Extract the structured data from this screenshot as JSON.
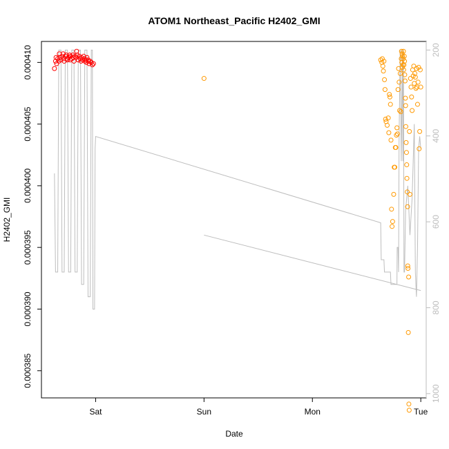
{
  "chart_data": {
    "type": "scatter",
    "title": "ATOM1 Northeast_Pacific H2402_GMI",
    "xlabel": "Date",
    "ylabel": "H2402_GMI",
    "x_ticks": [
      "Sat",
      "Sun",
      "Mon",
      "Tue"
    ],
    "y_ticks": [
      "0.000385",
      "0.000390",
      "0.000395",
      "0.000400",
      "0.000405",
      "0.000410"
    ],
    "y_right_ticks": [
      "200",
      "400",
      "600",
      "800",
      "1000"
    ],
    "xlim": [
      -0.5,
      3.05
    ],
    "ylim": [
      0.0003828,
      0.0004117
    ],
    "y_right_lim": [
      1010,
      180
    ],
    "colors": {
      "series_1": "#ff0000",
      "series_2": "#ff9900",
      "pressure_line": "#bdbdbd",
      "axis": "#000000",
      "right_axis": "#bdbdbd"
    },
    "series": [
      {
        "values": [
          [
            -0.38,
            0.0004095
          ],
          [
            -0.37,
            0.0004101
          ],
          [
            -0.365,
            0.0004104
          ],
          [
            -0.36,
            0.0004099
          ],
          [
            -0.35,
            0.0004103
          ],
          [
            -0.34,
            0.0004101
          ],
          [
            -0.335,
            0.0004107
          ],
          [
            -0.33,
            0.0004104
          ],
          [
            -0.32,
            0.0004102
          ],
          [
            -0.31,
            0.0004105
          ],
          [
            -0.3,
            0.0004107
          ],
          [
            -0.295,
            0.0004103
          ],
          [
            -0.29,
            0.0004101
          ],
          [
            -0.28,
            0.0004105
          ],
          [
            -0.27,
            0.0004106
          ],
          [
            -0.265,
            0.0004103
          ],
          [
            -0.26,
            0.0004102
          ],
          [
            -0.25,
            0.0004104
          ],
          [
            -0.24,
            0.0004106
          ],
          [
            -0.235,
            0.0004102
          ],
          [
            -0.23,
            0.0004105
          ],
          [
            -0.22,
            0.0004103
          ],
          [
            -0.21,
            0.0004106
          ],
          [
            -0.205,
            0.0004104
          ],
          [
            -0.2,
            0.0004101
          ],
          [
            -0.19,
            0.0004105
          ],
          [
            -0.18,
            0.0004104
          ],
          [
            -0.175,
            0.0004109
          ],
          [
            -0.17,
            0.0004106
          ],
          [
            -0.16,
            0.0004102
          ],
          [
            -0.15,
            0.0004105
          ],
          [
            -0.14,
            0.0004103
          ],
          [
            -0.135,
            0.0004101
          ],
          [
            -0.13,
            0.0004104
          ],
          [
            -0.12,
            0.0004102
          ],
          [
            -0.11,
            0.0004105
          ],
          [
            -0.105,
            0.0004103
          ],
          [
            -0.1,
            0.0004101
          ],
          [
            -0.09,
            0.0004102
          ],
          [
            -0.085,
            0.00041
          ],
          [
            -0.08,
            0.0004104
          ],
          [
            -0.07,
            0.0004102
          ],
          [
            -0.065,
            0.0004101
          ],
          [
            -0.06,
            0.0004099
          ],
          [
            -0.05,
            0.0004101
          ],
          [
            -0.04,
            0.00041
          ],
          [
            -0.03,
            0.0004098
          ],
          [
            -0.02,
            0.0004099
          ]
        ]
      },
      {
        "values": [
          [
            1.0,
            0.0004087
          ],
          [
            2.63,
            0.0004102
          ],
          [
            2.64,
            0.00041
          ],
          [
            2.645,
            0.0004103
          ],
          [
            2.65,
            0.0004097
          ],
          [
            2.655,
            0.0004093
          ],
          [
            2.66,
            0.0004101
          ],
          [
            2.665,
            0.0004086
          ],
          [
            2.67,
            0.0004078
          ],
          [
            2.675,
            0.0004054
          ],
          [
            2.68,
            0.0004052
          ],
          [
            2.69,
            0.0004049
          ],
          [
            2.7,
            0.0004055
          ],
          [
            2.705,
            0.0004043
          ],
          [
            2.71,
            0.0004074
          ],
          [
            2.715,
            0.0004072
          ],
          [
            2.72,
            0.0004066
          ],
          [
            2.725,
            0.0004037
          ],
          [
            2.73,
            0.0003981
          ],
          [
            2.735,
            0.0003967
          ],
          [
            2.74,
            0.0003971
          ],
          [
            2.75,
            0.0003993
          ],
          [
            2.755,
            0.0004015
          ],
          [
            2.76,
            0.0004015
          ],
          [
            2.765,
            0.0004031
          ],
          [
            2.77,
            0.0004031
          ],
          [
            2.775,
            0.0004041
          ],
          [
            2.78,
            0.0004047
          ],
          [
            2.785,
            0.0004042
          ],
          [
            2.79,
            0.0004078
          ],
          [
            2.795,
            0.0004095
          ],
          [
            2.8,
            0.0004084
          ],
          [
            2.805,
            0.0004061
          ],
          [
            2.81,
            0.0004091
          ],
          [
            2.815,
            0.000406
          ],
          [
            2.82,
            0.0004103
          ],
          [
            2.822,
            0.0004109
          ],
          [
            2.825,
            0.00041
          ],
          [
            2.828,
            0.0004107
          ],
          [
            2.83,
            0.0004096
          ],
          [
            2.832,
            0.0004105
          ],
          [
            2.835,
            0.0004098
          ],
          [
            2.838,
            0.0004103
          ],
          [
            2.84,
            0.0004109
          ],
          [
            2.842,
            0.0004094
          ],
          [
            2.845,
            0.0004098
          ],
          [
            2.848,
            0.0004105
          ],
          [
            2.85,
            0.0004101
          ],
          [
            2.852,
            0.000409
          ],
          [
            2.855,
            0.0004085
          ],
          [
            2.858,
            0.0004071
          ],
          [
            2.86,
            0.0004065
          ],
          [
            2.862,
            0.0004048
          ],
          [
            2.865,
            0.0004035
          ],
          [
            2.868,
            0.0004027
          ],
          [
            2.87,
            0.0004017
          ],
          [
            2.872,
            0.0004006
          ],
          [
            2.875,
            0.0003995
          ],
          [
            2.878,
            0.0003983
          ],
          [
            2.88,
            0.0003935
          ],
          [
            2.882,
            0.0003933
          ],
          [
            2.885,
            0.0003881
          ],
          [
            2.888,
            0.0003926
          ],
          [
            2.89,
            0.0003823
          ],
          [
            2.893,
            0.0003818
          ],
          [
            2.895,
            0.0004044
          ],
          [
            2.9,
            0.0003993
          ],
          [
            2.905,
            0.0004087
          ],
          [
            2.91,
            0.000408
          ],
          [
            2.915,
            0.0004072
          ],
          [
            2.92,
            0.0004061
          ],
          [
            2.925,
            0.0004094
          ],
          [
            2.93,
            0.0004089
          ],
          [
            2.935,
            0.0004097
          ],
          [
            2.94,
            0.0004083
          ],
          [
            2.945,
            0.0004091
          ],
          [
            2.95,
            0.0004088
          ],
          [
            2.955,
            0.0004079
          ],
          [
            2.96,
            0.0004095
          ],
          [
            2.965,
            0.000408
          ],
          [
            2.97,
            0.0004066
          ],
          [
            2.975,
            0.0004084
          ],
          [
            2.98,
            0.0004096
          ],
          [
            2.985,
            0.000403
          ],
          [
            2.99,
            0.0004044
          ],
          [
            2.995,
            0.0004094
          ],
          [
            3.0,
            0.000408
          ]
        ]
      }
    ],
    "pressure_line": [
      [
        -0.38,
        0.000401
      ],
      [
        -0.37,
        0.000393
      ],
      [
        -0.35,
        0.000393
      ],
      [
        -0.34,
        0.000411
      ],
      [
        -0.32,
        0.000411
      ],
      [
        -0.31,
        0.000393
      ],
      [
        -0.29,
        0.000393
      ],
      [
        -0.28,
        0.000411
      ],
      [
        -0.26,
        0.000411
      ],
      [
        -0.25,
        0.000393
      ],
      [
        -0.23,
        0.000393
      ],
      [
        -0.22,
        0.000411
      ],
      [
        -0.2,
        0.000411
      ],
      [
        -0.19,
        0.000393
      ],
      [
        -0.17,
        0.000393
      ],
      [
        -0.16,
        0.000411
      ],
      [
        -0.14,
        0.000411
      ],
      [
        -0.13,
        0.000392
      ],
      [
        -0.11,
        0.000392
      ],
      [
        -0.1,
        0.000411
      ],
      [
        -0.08,
        0.000411
      ],
      [
        -0.07,
        0.000391
      ],
      [
        -0.05,
        0.000391
      ],
      [
        -0.04,
        0.000411
      ],
      [
        -0.03,
        0.000411
      ],
      [
        -0.025,
        0.00039
      ],
      [
        -0.02,
        0.00039
      ],
      [
        -0.01,
        0.00039
      ],
      [
        -0.005,
        0.000403
      ],
      [
        0.0,
        0.000404
      ],
      [
        2.63,
        0.000397
      ],
      [
        2.635,
        0.000394
      ],
      [
        2.66,
        0.000394
      ],
      [
        2.665,
        0.000393
      ],
      [
        2.72,
        0.000393
      ],
      [
        2.725,
        0.000392
      ],
      [
        2.78,
        0.000392
      ],
      [
        2.782,
        0.000395
      ],
      [
        2.79,
        0.000395
      ],
      [
        2.795,
        0.000393
      ],
      [
        2.8,
        0.000404
      ],
      [
        2.81,
        0.000411
      ],
      [
        2.82,
        0.000402
      ],
      [
        2.83,
        0.000411
      ],
      [
        2.835,
        0.000402
      ],
      [
        2.84,
        0.000411
      ],
      [
        2.845,
        0.000393
      ],
      [
        2.85,
        0.000393
      ],
      [
        2.86,
        0.000398
      ],
      [
        2.88,
        0.0004
      ],
      [
        2.9,
        0.000396
      ],
      [
        2.92,
        0.000399
      ],
      [
        2.94,
        0.000405
      ],
      [
        2.95,
        0.000393
      ],
      [
        2.96,
        0.000391
      ],
      [
        2.97,
        0.000395
      ],
      [
        2.98,
        0.000403
      ],
      [
        2.99,
        0.000404
      ],
      [
        3.0,
        0.000403
      ]
    ],
    "pressure_line_2": [
      [
        1.0,
        0.000396
      ],
      [
        3.0,
        0.0003915
      ]
    ]
  }
}
